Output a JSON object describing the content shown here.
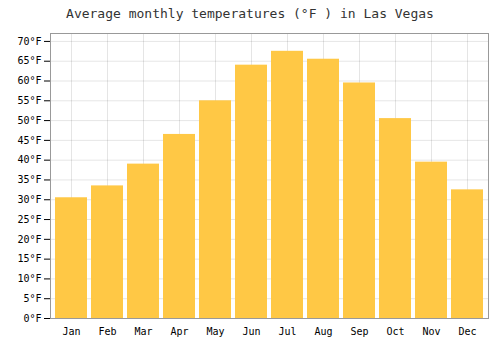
{
  "chart_data": {
    "type": "bar",
    "title": "Average monthly temperatures (°F ) in Las Vegas",
    "categories": [
      "Jan",
      "Feb",
      "Mar",
      "Apr",
      "May",
      "Jun",
      "Jul",
      "Aug",
      "Sep",
      "Oct",
      "Nov",
      "Dec"
    ],
    "values": [
      30.5,
      33.5,
      39.0,
      46.5,
      55.0,
      64.0,
      67.5,
      65.5,
      59.5,
      50.5,
      39.5,
      32.5
    ],
    "color": "#FFC845",
    "ylim": [
      0,
      72
    ],
    "yticks": [
      {
        "value": 0,
        "label": "0°F"
      },
      {
        "value": 5,
        "label": "5°F"
      },
      {
        "value": 10,
        "label": "10°F"
      },
      {
        "value": 15,
        "label": "15°F"
      },
      {
        "value": 20,
        "label": "20°F"
      },
      {
        "value": 25,
        "label": "25°F"
      },
      {
        "value": 30,
        "label": "30°F"
      },
      {
        "value": 35,
        "label": "35°F"
      },
      {
        "value": 40,
        "label": "40°F"
      },
      {
        "value": 45,
        "label": "45°F"
      },
      {
        "value": 50,
        "label": "50°F"
      },
      {
        "value": 55,
        "label": "55°F"
      },
      {
        "value": 60,
        "label": "60°F"
      },
      {
        "value": 65,
        "label": "65°F"
      },
      {
        "value": 70,
        "label": "70°F"
      }
    ],
    "grid": true
  }
}
